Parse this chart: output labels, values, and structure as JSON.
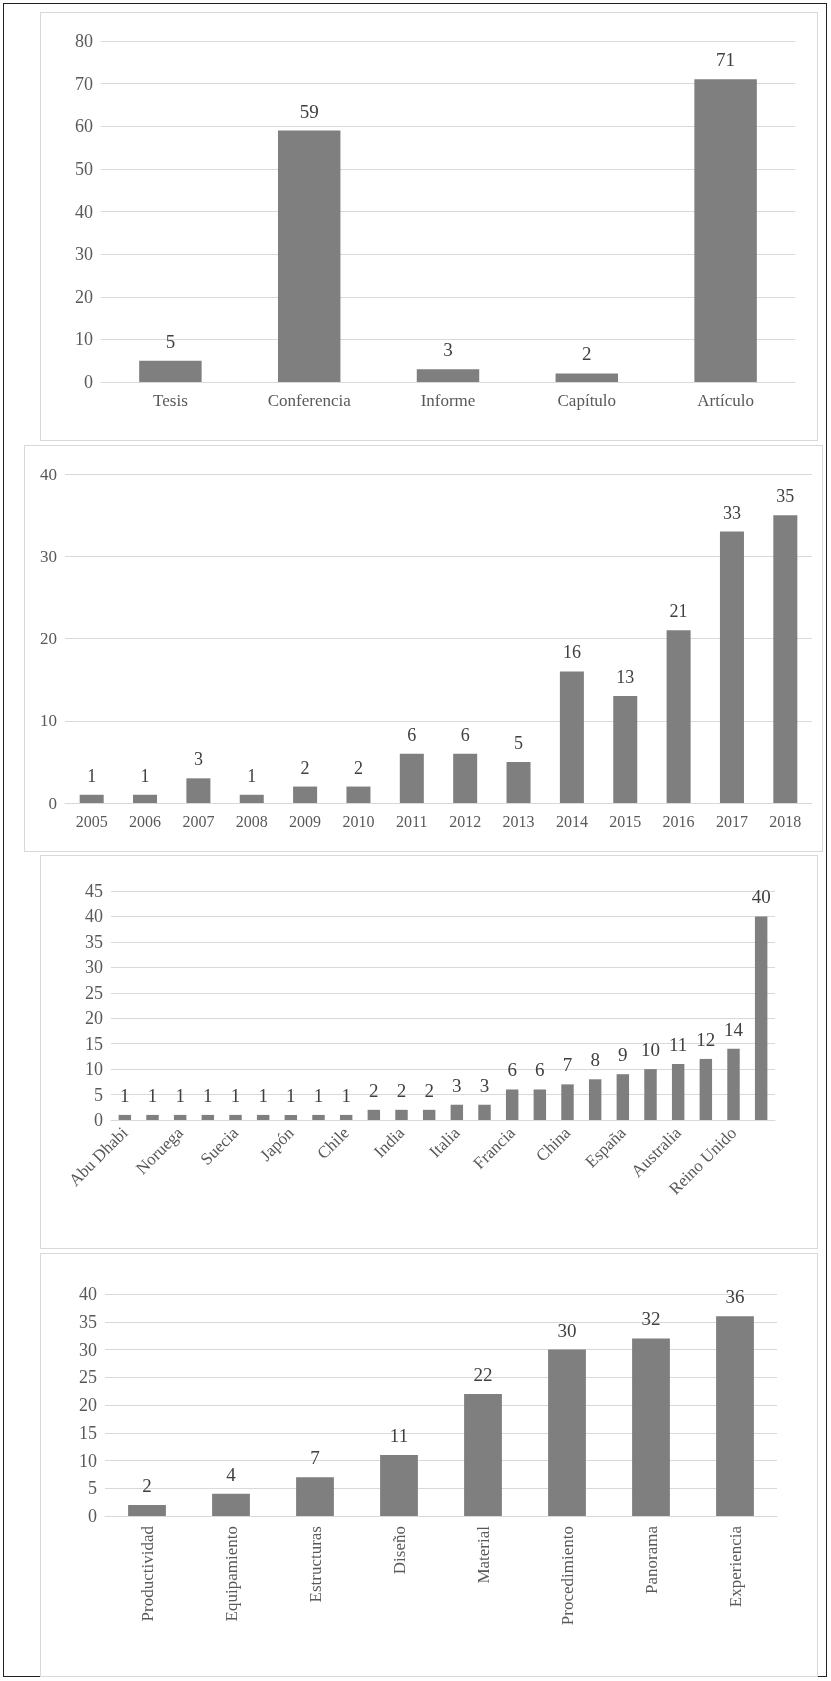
{
  "chart_data": [
    {
      "type": "bar",
      "categories": [
        "Tesis",
        "Conferencia",
        "Informe",
        "Capítulo",
        "Artículo"
      ],
      "values": [
        5,
        59,
        3,
        2,
        71
      ],
      "color": "#7f7f7f",
      "ylim": [
        0,
        80
      ],
      "yticks": [
        0,
        10,
        20,
        30,
        40,
        50,
        60,
        70,
        80
      ],
      "grid": "y",
      "data_labels": true
    },
    {
      "type": "bar",
      "categories": [
        "2005",
        "2006",
        "2007",
        "2008",
        "2009",
        "2010",
        "2011",
        "2012",
        "2013",
        "2014",
        "2015",
        "2016",
        "2017",
        "2018"
      ],
      "values": [
        1,
        1,
        3,
        1,
        2,
        2,
        6,
        6,
        5,
        16,
        13,
        21,
        33,
        35
      ],
      "color": "#7f7f7f",
      "ylim": [
        0,
        40
      ],
      "yticks": [
        0,
        10,
        20,
        30,
        40
      ],
      "grid": "y",
      "data_labels": true
    },
    {
      "type": "bar",
      "categories": [
        "Abu Dhabi",
        null,
        "Noruega",
        null,
        "Suecia",
        null,
        "Japón",
        null,
        "Chile",
        null,
        "India",
        null,
        "Italia",
        null,
        "Francia",
        null,
        "China",
        null,
        "España",
        null,
        "Australia",
        null,
        "Reino Unido",
        null
      ],
      "values": [
        1,
        1,
        1,
        1,
        1,
        1,
        1,
        1,
        1,
        2,
        2,
        2,
        3,
        3,
        6,
        6,
        7,
        8,
        9,
        10,
        11,
        12,
        14,
        40
      ],
      "color": "#7f7f7f",
      "ylim": [
        0,
        45
      ],
      "yticks": [
        0,
        5,
        10,
        15,
        20,
        25,
        30,
        35,
        40,
        45
      ],
      "grid": "y",
      "data_labels": true
    },
    {
      "type": "bar",
      "categories": [
        "Productividad",
        "Equipamiento",
        "Estructuras",
        "Diseño",
        "Material",
        "Procedimiento",
        "Panorama",
        "Experiencia"
      ],
      "values": [
        2,
        4,
        7,
        11,
        22,
        30,
        32,
        36
      ],
      "color": "#7f7f7f",
      "ylim": [
        0,
        40
      ],
      "yticks": [
        0,
        5,
        10,
        15,
        20,
        25,
        30,
        35,
        40
      ],
      "grid": "y",
      "data_labels": true
    }
  ]
}
